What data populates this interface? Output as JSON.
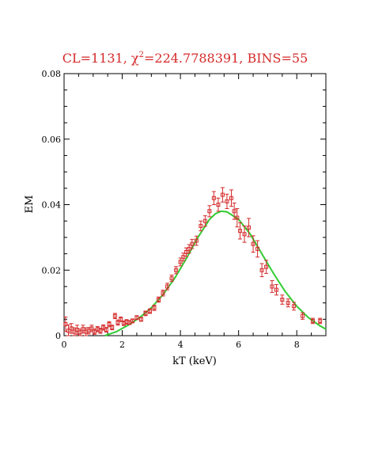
{
  "chart_data": {
    "type": "scatter",
    "title_prefix": "CL=1131, ",
    "title_chi": "χ",
    "title_sup": "2",
    "title_suffix": "=224.7788391, BINS=55",
    "xlabel": "kT (keV)",
    "ylabel": "EM",
    "xlim": [
      0,
      9
    ],
    "ylim": [
      0,
      0.08
    ],
    "xticks": [
      "0",
      "2",
      "4",
      "6",
      "8"
    ],
    "yticks": [
      "0",
      "0.02",
      "0.04",
      "0.06",
      "0.08"
    ],
    "colors": {
      "points": "#d42a2a",
      "fit": "#33cc33",
      "title": "#d42a2a"
    },
    "points": [
      {
        "x": 0.05,
        "y": 0.0035,
        "err": 0.0022
      },
      {
        "x": 0.15,
        "y": 0.0015,
        "err": 0.0018
      },
      {
        "x": 0.25,
        "y": 0.0022,
        "err": 0.0015
      },
      {
        "x": 0.35,
        "y": 0.0012,
        "err": 0.0012
      },
      {
        "x": 0.45,
        "y": 0.0018,
        "err": 0.0014
      },
      {
        "x": 0.55,
        "y": 0.001,
        "err": 0.001
      },
      {
        "x": 0.65,
        "y": 0.002,
        "err": 0.0012
      },
      {
        "x": 0.75,
        "y": 0.0012,
        "err": 0.0012
      },
      {
        "x": 0.85,
        "y": 0.0015,
        "err": 0.001
      },
      {
        "x": 0.95,
        "y": 0.0022,
        "err": 0.001
      },
      {
        "x": 1.05,
        "y": 0.0012,
        "err": 0.0008
      },
      {
        "x": 1.15,
        "y": 0.002,
        "err": 0.0008
      },
      {
        "x": 1.25,
        "y": 0.0015,
        "err": 0.0008
      },
      {
        "x": 1.35,
        "y": 0.0025,
        "err": 0.0008
      },
      {
        "x": 1.45,
        "y": 0.0018,
        "err": 0.0007
      },
      {
        "x": 1.55,
        "y": 0.0035,
        "err": 0.0008
      },
      {
        "x": 1.65,
        "y": 0.0025,
        "err": 0.0007
      },
      {
        "x": 1.75,
        "y": 0.006,
        "err": 0.0008
      },
      {
        "x": 1.85,
        "y": 0.004,
        "err": 0.0008
      },
      {
        "x": 1.95,
        "y": 0.005,
        "err": 0.0007
      },
      {
        "x": 2.05,
        "y": 0.0038,
        "err": 0.0007
      },
      {
        "x": 2.15,
        "y": 0.0042,
        "err": 0.0007
      },
      {
        "x": 2.25,
        "y": 0.004,
        "err": 0.0006
      },
      {
        "x": 2.35,
        "y": 0.0045,
        "err": 0.0006
      },
      {
        "x": 2.5,
        "y": 0.0055,
        "err": 0.0006
      },
      {
        "x": 2.65,
        "y": 0.005,
        "err": 0.0006
      },
      {
        "x": 2.8,
        "y": 0.0068,
        "err": 0.0007
      },
      {
        "x": 2.95,
        "y": 0.0075,
        "err": 0.0007
      },
      {
        "x": 3.1,
        "y": 0.0085,
        "err": 0.0008
      },
      {
        "x": 3.25,
        "y": 0.011,
        "err": 0.0008
      },
      {
        "x": 3.4,
        "y": 0.013,
        "err": 0.0009
      },
      {
        "x": 3.55,
        "y": 0.015,
        "err": 0.001
      },
      {
        "x": 3.7,
        "y": 0.0175,
        "err": 0.001
      },
      {
        "x": 3.85,
        "y": 0.02,
        "err": 0.0011
      },
      {
        "x": 4.0,
        "y": 0.0225,
        "err": 0.0012
      },
      {
        "x": 4.1,
        "y": 0.024,
        "err": 0.0012
      },
      {
        "x": 4.2,
        "y": 0.0255,
        "err": 0.0013
      },
      {
        "x": 4.3,
        "y": 0.0265,
        "err": 0.0013
      },
      {
        "x": 4.4,
        "y": 0.028,
        "err": 0.0014
      },
      {
        "x": 4.55,
        "y": 0.029,
        "err": 0.0014
      },
      {
        "x": 4.7,
        "y": 0.0335,
        "err": 0.0015
      },
      {
        "x": 4.85,
        "y": 0.035,
        "err": 0.0016
      },
      {
        "x": 5.0,
        "y": 0.038,
        "err": 0.0017
      },
      {
        "x": 5.15,
        "y": 0.042,
        "err": 0.002
      },
      {
        "x": 5.3,
        "y": 0.04,
        "err": 0.002
      },
      {
        "x": 5.45,
        "y": 0.043,
        "err": 0.0022
      },
      {
        "x": 5.6,
        "y": 0.041,
        "err": 0.0022
      },
      {
        "x": 5.75,
        "y": 0.042,
        "err": 0.0025
      },
      {
        "x": 5.85,
        "y": 0.038,
        "err": 0.0025
      },
      {
        "x": 5.95,
        "y": 0.036,
        "err": 0.0028
      },
      {
        "x": 6.05,
        "y": 0.032,
        "err": 0.0025
      },
      {
        "x": 6.2,
        "y": 0.031,
        "err": 0.0025
      },
      {
        "x": 6.35,
        "y": 0.033,
        "err": 0.0028
      },
      {
        "x": 6.5,
        "y": 0.028,
        "err": 0.0025
      },
      {
        "x": 6.65,
        "y": 0.0265,
        "err": 0.0025
      },
      {
        "x": 6.8,
        "y": 0.02,
        "err": 0.002
      },
      {
        "x": 6.95,
        "y": 0.021,
        "err": 0.002
      },
      {
        "x": 7.15,
        "y": 0.015,
        "err": 0.0018
      },
      {
        "x": 7.3,
        "y": 0.014,
        "err": 0.0016
      },
      {
        "x": 7.5,
        "y": 0.011,
        "err": 0.0014
      },
      {
        "x": 7.7,
        "y": 0.01,
        "err": 0.0012
      },
      {
        "x": 7.9,
        "y": 0.009,
        "err": 0.0012
      },
      {
        "x": 8.2,
        "y": 0.006,
        "err": 0.001
      },
      {
        "x": 8.55,
        "y": 0.0045,
        "err": 0.0008
      },
      {
        "x": 8.8,
        "y": 0.0045,
        "err": 0.0008
      }
    ],
    "fit": {
      "x": [
        1.4,
        1.8,
        2.2,
        2.6,
        3.0,
        3.4,
        3.8,
        4.2,
        4.6,
        5.0,
        5.2,
        5.4,
        5.6,
        6.0,
        6.4,
        6.8,
        7.2,
        7.6,
        8.0,
        8.4,
        8.8,
        9.0
      ],
      "y": [
        0.0,
        0.0012,
        0.0032,
        0.0055,
        0.0085,
        0.0125,
        0.0175,
        0.0235,
        0.03,
        0.0355,
        0.0372,
        0.038,
        0.0378,
        0.0355,
        0.031,
        0.025,
        0.019,
        0.0135,
        0.009,
        0.0055,
        0.003,
        0.002
      ]
    }
  }
}
